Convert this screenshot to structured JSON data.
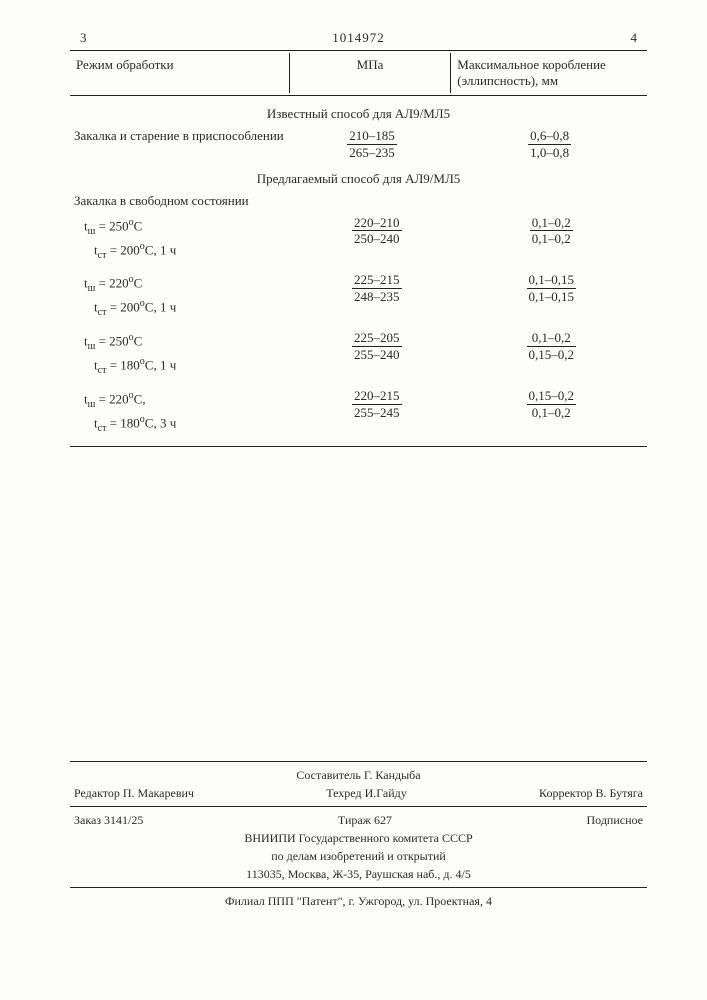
{
  "header": {
    "leftnum": "3",
    "docnum": "1014972",
    "rightnum": "4",
    "col1": "Режим обработки",
    "col2": "МПа",
    "col3": "Максимальное коробление (эллипсность), мм"
  },
  "section1": {
    "title": "Известный способ для АЛ9/МЛ5",
    "label": "Закалка и старение в приспособлении",
    "mpa_num": "210–185",
    "mpa_den": "265–235",
    "kor_num": "0,6–0,8",
    "kor_den": "1,0–0,8"
  },
  "section2": {
    "title": "Предлагаемый способ для АЛ9/МЛ5",
    "label": "Закалка в свободном состоянии",
    "rows": [
      {
        "l1": "tш = 250°С",
        "l2": "tст = 200°С, 1 ч",
        "mpa_num": "220–210",
        "mpa_den": "250–240",
        "kor_num": "0,1–0,2",
        "kor_den": "0,1–0,2"
      },
      {
        "l1": "tш = 220°С",
        "l2": "tст = 200°С, 1 ч",
        "mpa_num": "225–215",
        "mpa_den": "248–235",
        "kor_num": "0,1–0,15",
        "kor_den": "0,1–0,15"
      },
      {
        "l1": "tш = 250°С",
        "l2": "tст = 180°С, 1 ч",
        "mpa_num": "225–205",
        "mpa_den": "255–240",
        "kor_num": "0,1–0,2",
        "kor_den": "0,15–0,2"
      },
      {
        "l1": "tш = 220°С,",
        "l2": "tст = 180°С, 3 ч",
        "mpa_num": "220–215",
        "mpa_den": "255–245",
        "kor_num": "0,15–0,2",
        "kor_den": "0,1–0,2"
      }
    ]
  },
  "footer": {
    "compiler": "Составитель Г. Кандыба",
    "editor": "Редактор П. Макаревич",
    "tech": "Техред И.Гайду",
    "corrector": "Корректор В. Бутяга",
    "order": "Заказ 3141/25",
    "tirage": "Тираж 627",
    "sub": "Подписное",
    "org1": "ВНИИПИ Государственного комитета СССР",
    "org2": "по делам изобретений и открытий",
    "addr1": "113035, Москва, Ж-35, Раушская наб., д. 4/5",
    "addr2": "Филиал ППП \"Патент\", г. Ужгород, ул. Проектная, 4"
  }
}
